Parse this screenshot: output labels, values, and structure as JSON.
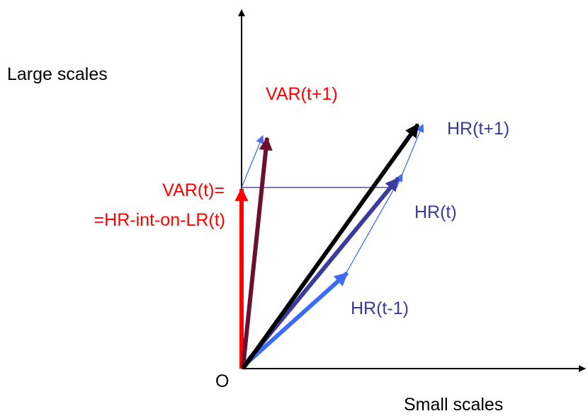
{
  "labels": {
    "y_axis": "Large scales",
    "x_axis": "Small scales",
    "origin": "O",
    "var_t1": "VAR(t+1)",
    "var_t_line1": "VAR(t)=",
    "var_t_line2": "=HR-int-on-LR(t)",
    "hr_t1": "HR(t+1)",
    "hr_t": "HR(t)",
    "hr_tm1": "HR(t-1)"
  },
  "colors": {
    "axis": "#000000",
    "red": "#ff0000",
    "blue_light": "#3b6cf6",
    "blue_dark": "#3d3a9e",
    "maroon": "#6b1030",
    "black": "#000000",
    "label_blue": "#3a3aa0",
    "thin_blue": "#4a6cf0",
    "thin_navy": "#2c2c8c"
  }
}
